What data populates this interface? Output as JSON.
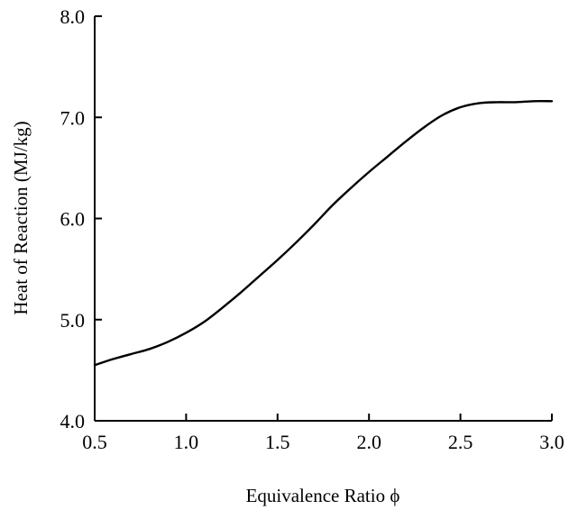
{
  "chart_data": {
    "type": "line",
    "title": "",
    "xlabel": "Equivalence Ratio ϕ",
    "ylabel": "Heat of Reaction (MJ/kg)",
    "xlim": [
      0.5,
      3.0
    ],
    "ylim": [
      4.0,
      8.0
    ],
    "x_ticks": [
      "0.5",
      "1.0",
      "1.5",
      "2.0",
      "2.5",
      "3.0"
    ],
    "y_ticks": [
      "4.0",
      "5.0",
      "6.0",
      "7.0",
      "8.0"
    ],
    "grid": false,
    "legend": "none",
    "series": [
      {
        "x": [
          0.5,
          0.6,
          0.7,
          0.8,
          0.9,
          1.0,
          1.1,
          1.2,
          1.3,
          1.4,
          1.5,
          1.6,
          1.7,
          1.8,
          1.9,
          2.0,
          2.1,
          2.2,
          2.3,
          2.4,
          2.5,
          2.6,
          2.7,
          2.8,
          2.9,
          3.0
        ],
        "y": [
          4.55,
          4.61,
          4.66,
          4.71,
          4.78,
          4.87,
          4.98,
          5.12,
          5.27,
          5.43,
          5.59,
          5.76,
          5.94,
          6.13,
          6.3,
          6.46,
          6.61,
          6.76,
          6.9,
          7.02,
          7.1,
          7.14,
          7.15,
          7.15,
          7.16,
          7.16
        ],
        "color": "#000000"
      }
    ]
  }
}
